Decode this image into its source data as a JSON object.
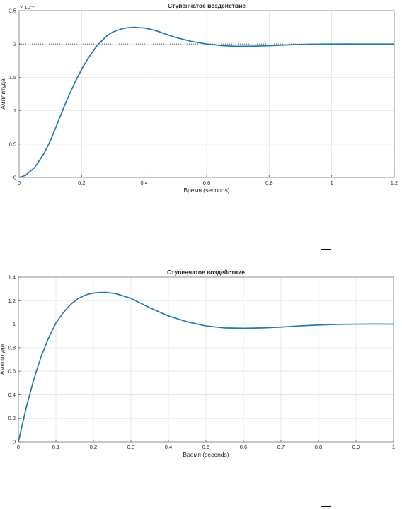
{
  "chart_data": [
    {
      "type": "line",
      "title": "Ступенчатое воздействие",
      "xlabel": "Время (seconds)",
      "ylabel": "Амплитуда",
      "xlim": [
        0,
        1.2
      ],
      "ylim": [
        0,
        2.5
      ],
      "y_exponent_label": "× 10⁻⁵",
      "xticks": [
        "0",
        "0.2",
        "0.4",
        "0.6",
        "0.8",
        "1",
        "1.2"
      ],
      "yticks": [
        "0",
        "0.5",
        "1",
        "1.5",
        "2",
        "2.5"
      ],
      "grid": true,
      "reference_line": 2,
      "series": [
        {
          "color": "#1f77b4",
          "x": [
            0,
            0.02,
            0.05,
            0.08,
            0.1,
            0.12,
            0.15,
            0.18,
            0.2,
            0.22,
            0.25,
            0.28,
            0.3,
            0.33,
            0.35,
            0.37,
            0.4,
            0.43,
            0.45,
            0.48,
            0.5,
            0.55,
            0.6,
            0.65,
            0.7,
            0.75,
            0.8,
            0.85,
            0.9,
            0.95,
            1.0,
            1.05,
            1.1,
            1.15,
            1.2
          ],
          "y": [
            0,
            0.03,
            0.15,
            0.36,
            0.55,
            0.78,
            1.13,
            1.44,
            1.62,
            1.78,
            1.98,
            2.12,
            2.18,
            2.23,
            2.245,
            2.25,
            2.24,
            2.21,
            2.18,
            2.13,
            2.1,
            2.04,
            2.0,
            1.975,
            1.965,
            1.968,
            1.975,
            1.985,
            1.993,
            1.998,
            2.0,
            2.001,
            2.0,
            2.0,
            2.0
          ]
        }
      ]
    },
    {
      "type": "line",
      "title": "Ступенчатое воздействие",
      "xlabel": "Время (seconds)",
      "ylabel": "Амплитуда",
      "xlim": [
        0,
        1
      ],
      "ylim": [
        0,
        1.4
      ],
      "xticks": [
        "0",
        "0.1",
        "0.2",
        "0.3",
        "0.4",
        "0.5",
        "0.6",
        "0.7",
        "0.8",
        "0.9",
        "1"
      ],
      "yticks": [
        "0",
        "0.2",
        "0.4",
        "0.6",
        "0.8",
        "1",
        "1.2",
        "1.4"
      ],
      "grid": true,
      "reference_line": 1,
      "series": [
        {
          "color": "#1f77b4",
          "x": [
            0,
            0.02,
            0.04,
            0.06,
            0.08,
            0.1,
            0.12,
            0.14,
            0.16,
            0.18,
            0.2,
            0.22,
            0.235,
            0.26,
            0.3,
            0.35,
            0.4,
            0.45,
            0.5,
            0.55,
            0.6,
            0.65,
            0.7,
            0.75,
            0.8,
            0.85,
            0.9,
            0.95,
            1.0
          ],
          "y": [
            0,
            0.28,
            0.52,
            0.72,
            0.88,
            1.01,
            1.1,
            1.17,
            1.22,
            1.25,
            1.265,
            1.27,
            1.27,
            1.26,
            1.22,
            1.14,
            1.07,
            1.02,
            0.985,
            0.968,
            0.965,
            0.968,
            0.975,
            0.985,
            0.993,
            0.998,
            1.0,
            1.001,
            1.0
          ]
        }
      ]
    }
  ]
}
